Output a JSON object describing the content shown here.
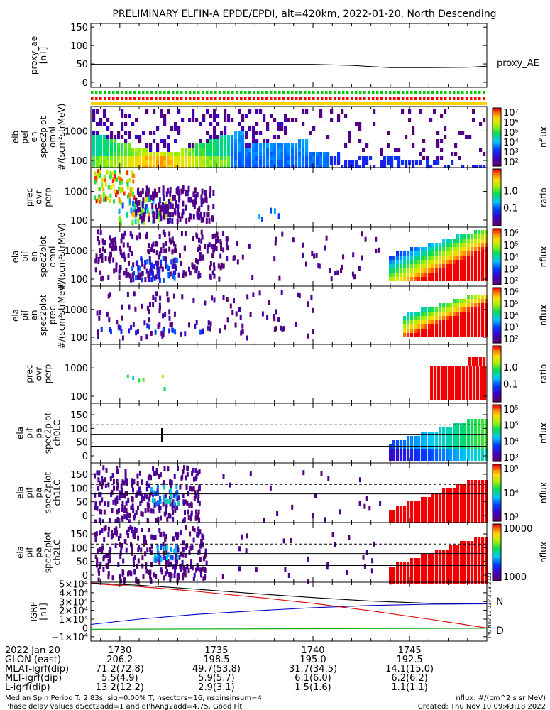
{
  "title": "PRELIMINARY ELFIN-A EPDE/EPDI, alt=420km, 2022-01-20, North Descending",
  "colors": {
    "axis": "#000000",
    "bar_green": "#00cc00",
    "bar_red": "#ff0000",
    "bar_yellow": "#ffd400",
    "igrf_total": "#000000",
    "igrf_north": "#0000cc",
    "igrf_east": "#00aa00",
    "igrf_down": "#dd0000",
    "igrf_label_n": "#0000cc",
    "igrf_label_d": "#dd0000"
  },
  "time_axis": {
    "ticks": [
      "1730",
      "1735",
      "1740",
      "1745"
    ]
  },
  "colorbar_side_label": "Thu Nov 10 01:43:18 2022",
  "chart_data": [
    {
      "id": "proxy_ae",
      "type": "line",
      "ylabel": [
        "proxy_ae",
        "[nT]"
      ],
      "yticks": [
        "150",
        "100",
        "50",
        "0"
      ],
      "ylim": [
        0,
        160
      ],
      "legend": "proxy_AE",
      "x": [
        1728.5,
        1730,
        1732,
        1734,
        1736,
        1738,
        1740,
        1742,
        1744,
        1746,
        1748,
        1749
      ],
      "y": [
        49,
        49,
        49,
        49,
        49,
        49,
        49,
        46,
        40,
        40,
        41,
        44
      ]
    },
    {
      "id": "spin_flags",
      "type": "table",
      "rows": [
        "green",
        "red",
        "yellow"
      ]
    },
    {
      "id": "elb_pef_omni",
      "type": "heatmap",
      "ylabel": [
        "elb",
        "pef",
        "en",
        "spec2plot",
        "omni",
        "#/(scm²strMeV)"
      ],
      "yticks": [
        "1000",
        "100"
      ],
      "colorbar": {
        "ticks": [
          "10⁷",
          "10⁶",
          "10⁵",
          "10⁴",
          "10³",
          "10²"
        ],
        "label": "nflux"
      }
    },
    {
      "id": "elb_pef_ratio",
      "type": "heatmap",
      "ylabel": [
        "prec",
        "ovr",
        "perp"
      ],
      "yticks": [
        "1000",
        "100"
      ],
      "colorbar": {
        "ticks": [
          "1.0",
          "0.1"
        ],
        "label": "ratio"
      }
    },
    {
      "id": "ela_pif_omni",
      "type": "heatmap",
      "ylabel": [
        "ela",
        "pif",
        "en",
        "spec2plot",
        "omni",
        "#/(scm²strMeV)"
      ],
      "yticks": [
        "1000",
        "100"
      ],
      "colorbar": {
        "ticks": [
          "10⁶",
          "10⁵",
          "10⁴",
          "10³",
          "10²"
        ],
        "label": "nflux"
      }
    },
    {
      "id": "ela_pif_prec",
      "type": "heatmap",
      "ylabel": [
        "ela",
        "pif",
        "en",
        "spec2plot",
        "prec",
        "#/(scm²strMeV)"
      ],
      "yticks": [
        "1000",
        "100"
      ],
      "colorbar": {
        "ticks": [
          "10⁶",
          "10⁵",
          "10⁴",
          "10³",
          "10²"
        ],
        "label": "nflux"
      }
    },
    {
      "id": "ela_pif_ratio",
      "type": "heatmap",
      "ylabel": [
        "prec",
        "ovr",
        "perp"
      ],
      "yticks": [
        "1000",
        "100"
      ],
      "colorbar": {
        "ticks": [
          "1.0",
          "0.1"
        ],
        "label": "ratio"
      }
    },
    {
      "id": "ela_pa_ch0",
      "type": "heatmap",
      "ylabel": [
        "ela",
        "pif",
        "pa",
        "spec2plot",
        "ch0LC"
      ],
      "yticks": [
        "150",
        "100",
        "50",
        "0"
      ],
      "colorbar": {
        "ticks": [
          "10⁵",
          "10⁵",
          "10⁴",
          "10³"
        ],
        "label": "nflux"
      }
    },
    {
      "id": "ela_pa_ch1",
      "type": "heatmap",
      "ylabel": [
        "ela",
        "pif",
        "pa",
        "spec2plot",
        "ch1LC"
      ],
      "yticks": [
        "150",
        "100",
        "50",
        "0"
      ],
      "colorbar": {
        "ticks": [
          "10⁵",
          "10⁴",
          "10³"
        ],
        "label": "nflux"
      }
    },
    {
      "id": "ela_pa_ch2",
      "type": "heatmap",
      "ylabel": [
        "ela",
        "pif",
        "pa",
        "spec2plot",
        "ch2LC"
      ],
      "yticks": [
        "150",
        "100",
        "50",
        "0"
      ],
      "colorbar": {
        "ticks": [
          "10000",
          "1000"
        ],
        "label": "nflux"
      }
    },
    {
      "id": "igrf",
      "type": "line",
      "ylabel": [
        "IGRF",
        "[nT]"
      ],
      "yticks": [
        "5×10⁴",
        "4×10⁴",
        "3×10⁴",
        "2×10⁴",
        "1×10⁴",
        "0",
        "−1×10⁴"
      ],
      "ylim": [
        -15000,
        52000
      ],
      "series": [
        {
          "name": "T",
          "x": [
            1728.5,
            1731,
            1734,
            1737,
            1740,
            1743,
            1746,
            1749
          ],
          "values": [
            51000,
            48500,
            44000,
            39000,
            34500,
            30500,
            28000,
            27500
          ]
        },
        {
          "name": "N",
          "x": [
            1728.5,
            1731,
            1734,
            1737,
            1740,
            1743,
            1746,
            1749
          ],
          "values": [
            4000,
            10000,
            15500,
            19500,
            23000,
            25500,
            27000,
            27500
          ]
        },
        {
          "name": "D",
          "x": [
            1728.5,
            1731,
            1734,
            1737,
            1740,
            1743,
            1746,
            1749
          ],
          "values": [
            50500,
            47000,
            41500,
            35000,
            28000,
            19500,
            10000,
            0
          ]
        },
        {
          "name": "",
          "x": [
            1728.5,
            1749
          ],
          "values": [
            -1500,
            -400
          ]
        }
      ],
      "labels": [
        "N",
        "D"
      ]
    }
  ],
  "ephemeris": {
    "rows": [
      {
        "label": "2022 Jan 20",
        "values": [
          "1730",
          "1735",
          "1740",
          "1745"
        ]
      },
      {
        "label": "GLON (east)",
        "values": [
          "206.2",
          "198.5",
          "195.0",
          "192.5"
        ]
      },
      {
        "label": "MLAT-igrf(dip)",
        "values": [
          "71.2(72.8)",
          "49.7(53.8)",
          "31.7(34.5)",
          "14.1(15.0)"
        ]
      },
      {
        "label": "MLT-igrf(dip)",
        "values": [
          "5.5(4.9)",
          "5.9(5.7)",
          "6.1(6.0)",
          "6.2(6.2)"
        ]
      },
      {
        "label": "L-igrf(dip)",
        "values": [
          "13.2(12.2)",
          "2.9(3.1)",
          "1.5(1.6)",
          "1.1(1.1)"
        ]
      }
    ]
  },
  "footer": {
    "line1_left": "Median Spin Period T: 2.83s, sig=0.00% T, nsectors=16, nspinsinsum=4",
    "line2_left": "Phase delay values dSect2add=1 and dPhAng2add=4.75, Good Fit",
    "line1_right": "nflux: #/(cm^2 s sr MeV)",
    "line2_right": "Created: Thu Nov 10 09:43:18 2022"
  }
}
